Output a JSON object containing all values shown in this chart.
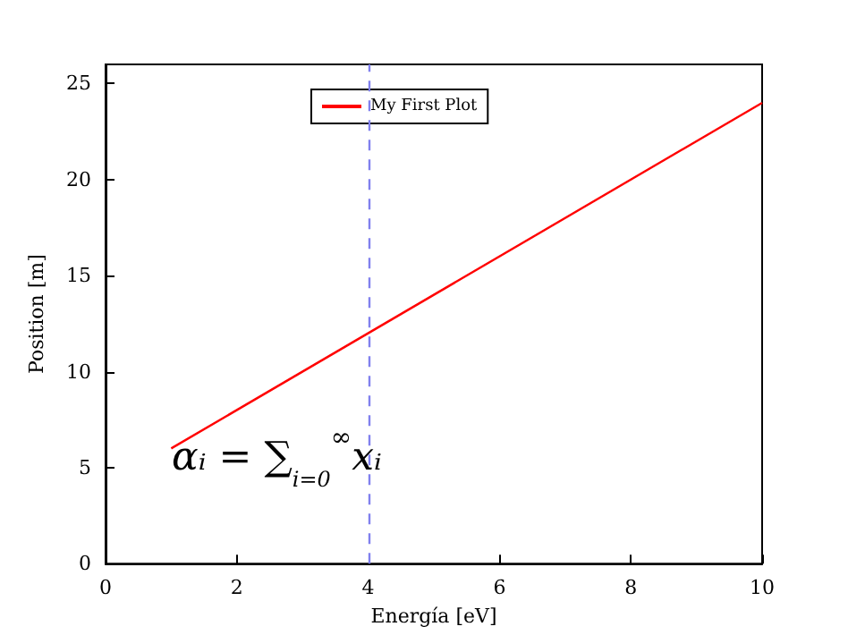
{
  "chart_data": {
    "type": "line",
    "xlabel": "Energía [eV]",
    "ylabel": "Position [m]",
    "x": [
      1,
      10
    ],
    "series": [
      {
        "name": "My First Plot",
        "color": "#ff0000",
        "values": [
          6,
          24
        ]
      }
    ],
    "xlim": [
      0,
      10
    ],
    "xticks": [
      0,
      2,
      4,
      6,
      8,
      10
    ],
    "ylim": [
      0,
      26
    ],
    "yticks": [
      0,
      5,
      10,
      15,
      20,
      25
    ],
    "ref_lines": [
      {
        "axis": "x",
        "value": 4,
        "color": "#8080ee",
        "line_style": "dashed"
      }
    ],
    "annotations": [
      "αᵢ = ∑$_{i=0}$$^{∞}$xᵢ"
    ],
    "grid": false,
    "legend": "top",
    "marker": "none",
    "line_style": "solid"
  }
}
